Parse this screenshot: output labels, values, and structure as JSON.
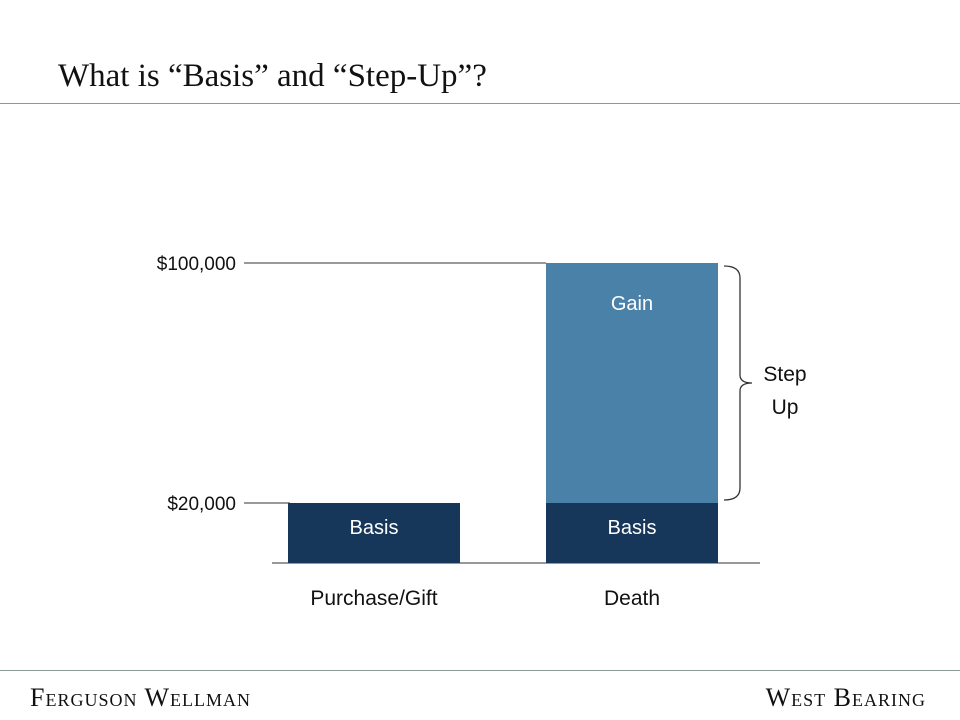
{
  "slide": {
    "title": "What is “Basis” and “Step-Up”?",
    "footer_left": "Ferguson Wellman",
    "footer_right": "West Bearing"
  },
  "chart_data": {
    "type": "bar",
    "stacked": true,
    "categories": [
      "Purchase/Gift",
      "Death"
    ],
    "series": [
      {
        "name": "Basis",
        "values": [
          20000,
          20000
        ],
        "color": "#16375a"
      },
      {
        "name": "Gain",
        "values": [
          0,
          80000
        ],
        "color": "#4a81a8"
      }
    ],
    "yticks": [
      {
        "value": 20000,
        "label": "$20,000"
      },
      {
        "value": 100000,
        "label": "$100,000"
      }
    ],
    "segment_labels": [
      {
        "category": "Purchase/Gift",
        "series": "Basis",
        "text": "Basis"
      },
      {
        "category": "Death",
        "series": "Basis",
        "text": "Basis"
      },
      {
        "category": "Death",
        "series": "Gain",
        "text": "Gain"
      }
    ],
    "annotation": {
      "text_lines": [
        "Step",
        "Up"
      ],
      "spans": "Gain"
    },
    "grid": false,
    "legend": "none"
  }
}
